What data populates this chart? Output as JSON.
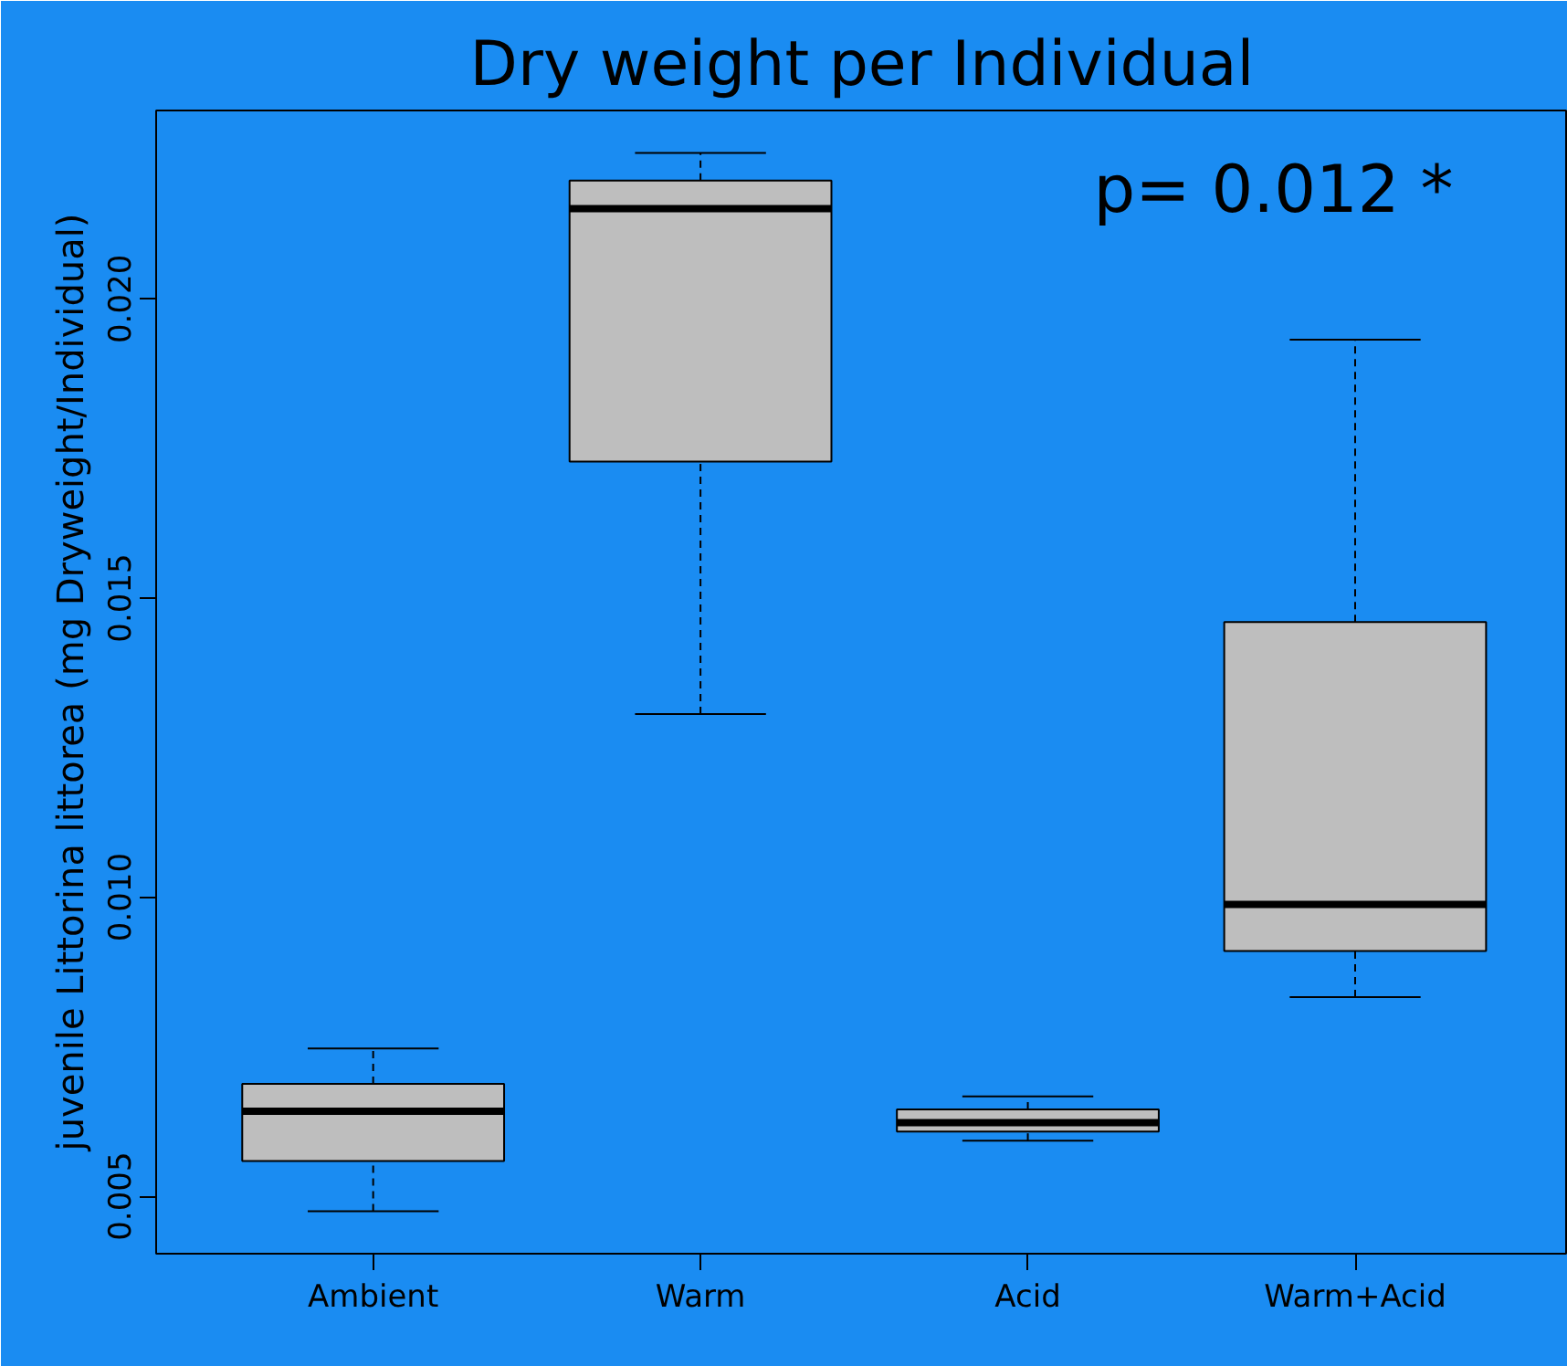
{
  "chart_data": {
    "type": "box",
    "title": "Dry weight per Individual",
    "ylabel": "juvenile Littorina littorea (mg Dryweight/Individual)",
    "categories": [
      "Ambient",
      "Warm",
      "Acid",
      "Warm+Acid"
    ],
    "series": [
      {
        "color": "#bebebe",
        "boxes": [
          {
            "low": 0.00475,
            "q1": 0.00559,
            "median": 0.00642,
            "q3": 0.00688,
            "high": 0.00747
          },
          {
            "low": 0.01306,
            "q1": 0.01728,
            "median": 0.02151,
            "q3": 0.02198,
            "high": 0.02244
          },
          {
            "low": 0.00593,
            "q1": 0.00608,
            "median": 0.00623,
            "q3": 0.00645,
            "high": 0.00667
          },
          {
            "low": 0.00833,
            "q1": 0.0091,
            "median": 0.00988,
            "q3": 0.0146,
            "high": 0.01932
          }
        ]
      }
    ],
    "ylim": [
      0.00404,
      0.02315
    ],
    "yticks": [
      {
        "value": 0.005,
        "label": "0.005"
      },
      {
        "value": 0.01,
        "label": "0.010"
      },
      {
        "value": 0.015,
        "label": "0.015"
      },
      {
        "value": 0.02,
        "label": "0.020"
      }
    ],
    "annotations": [
      "p= 0.012 *"
    ]
  }
}
